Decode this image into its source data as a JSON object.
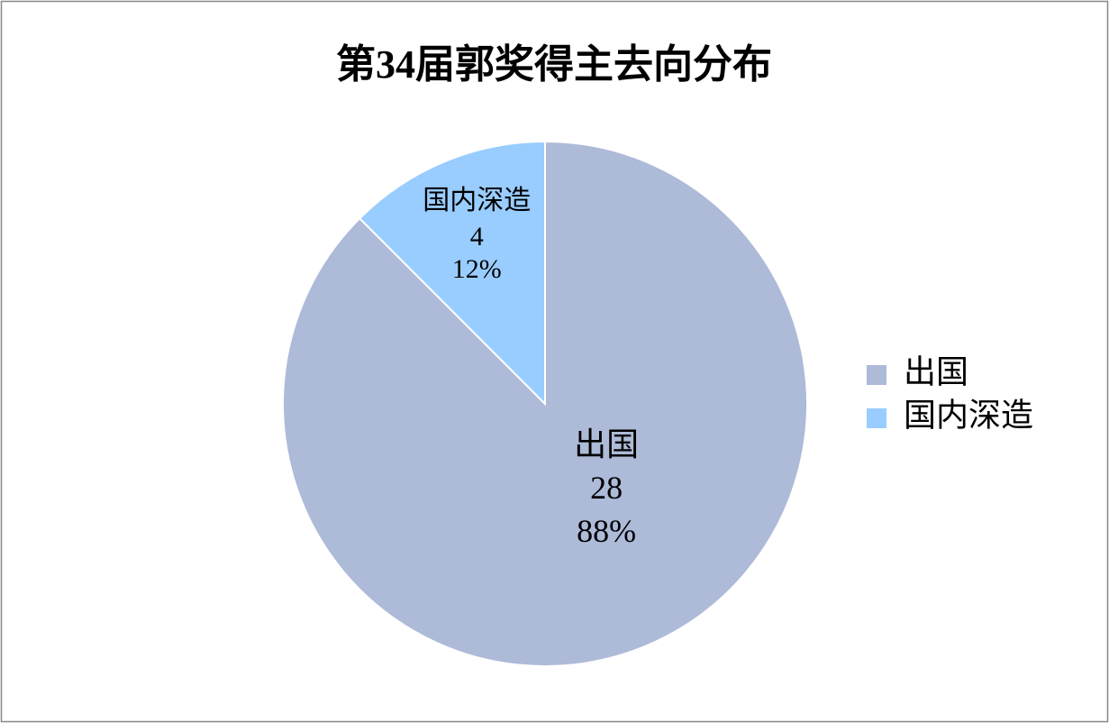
{
  "chart_data": {
    "type": "pie",
    "title": "第34届郭奖得主去向分布",
    "categories": [
      "出国",
      "国内深造"
    ],
    "values": [
      28,
      4
    ],
    "percent_labels": [
      "88%",
      "12%"
    ],
    "colors": [
      "#adbad8",
      "#99ccff"
    ],
    "legend": "right"
  }
}
